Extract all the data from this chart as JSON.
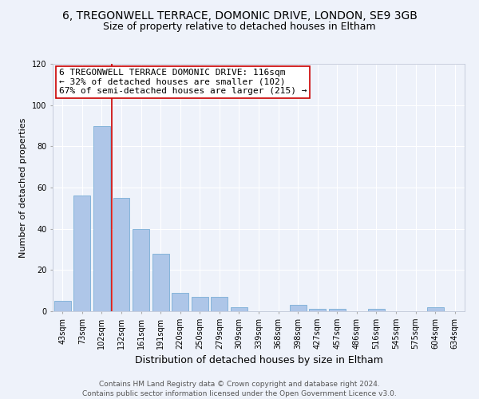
{
  "title": "6, TREGONWELL TERRACE, DOMONIC DRIVE, LONDON, SE9 3GB",
  "subtitle": "Size of property relative to detached houses in Eltham",
  "xlabel": "Distribution of detached houses by size in Eltham",
  "ylabel": "Number of detached properties",
  "categories": [
    "43sqm",
    "73sqm",
    "102sqm",
    "132sqm",
    "161sqm",
    "191sqm",
    "220sqm",
    "250sqm",
    "279sqm",
    "309sqm",
    "339sqm",
    "368sqm",
    "398sqm",
    "427sqm",
    "457sqm",
    "486sqm",
    "516sqm",
    "545sqm",
    "575sqm",
    "604sqm",
    "634sqm"
  ],
  "values": [
    5,
    56,
    90,
    55,
    40,
    28,
    9,
    7,
    7,
    2,
    0,
    0,
    3,
    1,
    1,
    0,
    1,
    0,
    0,
    2,
    0
  ],
  "bar_color": "#aec6e8",
  "bar_edge_color": "#7aaed6",
  "property_line_label": "6 TREGONWELL TERRACE DOMONIC DRIVE: 116sqm",
  "annotation_line1": "← 32% of detached houses are smaller (102)",
  "annotation_line2": "67% of semi-detached houses are larger (215) →",
  "vline_color": "#cc0000",
  "box_edge_color": "#cc0000",
  "ylim": [
    0,
    120
  ],
  "yticks": [
    0,
    20,
    40,
    60,
    80,
    100,
    120
  ],
  "footer1": "Contains HM Land Registry data © Crown copyright and database right 2024.",
  "footer2": "Contains public sector information licensed under the Open Government Licence v3.0.",
  "bg_color": "#eef2fa",
  "grid_color": "#ffffff",
  "title_fontsize": 10,
  "subtitle_fontsize": 9,
  "ylabel_fontsize": 8,
  "xlabel_fontsize": 9,
  "tick_fontsize": 7,
  "annotation_fontsize": 8,
  "footer_fontsize": 6.5
}
